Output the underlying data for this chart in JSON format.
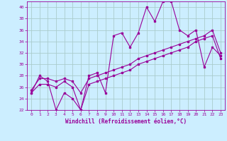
{
  "xlabel": "Windchill (Refroidissement éolien,°C)",
  "background_color": "#cceeff",
  "grid_color": "#aacccc",
  "line_color": "#990099",
  "xlim": [
    -0.5,
    23.5
  ],
  "ylim": [
    22,
    41
  ],
  "yticks": [
    22,
    24,
    26,
    28,
    30,
    32,
    34,
    36,
    38,
    40
  ],
  "xticks": [
    0,
    1,
    2,
    3,
    4,
    5,
    6,
    7,
    8,
    9,
    10,
    11,
    12,
    13,
    14,
    15,
    16,
    17,
    18,
    19,
    20,
    21,
    22,
    23
  ],
  "series1_x": [
    0,
    1,
    2,
    3,
    4,
    5,
    6,
    7,
    8,
    9,
    10,
    11,
    12,
    13,
    14,
    15,
    16,
    17,
    18,
    19,
    20,
    21,
    22,
    23
  ],
  "series1_y": [
    25,
    28,
    27,
    22,
    25,
    24,
    22,
    28,
    28.5,
    25,
    35,
    35.5,
    33,
    35.5,
    40,
    37.5,
    41,
    41,
    36,
    35,
    36,
    29.5,
    33,
    31.5
  ],
  "series2_x": [
    0,
    1,
    2,
    3,
    4,
    5,
    6,
    7,
    8,
    9,
    10,
    11,
    12,
    13,
    14,
    15,
    16,
    17,
    18,
    19,
    20,
    21,
    22,
    23
  ],
  "series2_y": [
    25.5,
    27.5,
    27.5,
    27,
    27.5,
    27,
    25,
    27.5,
    28,
    28.5,
    29,
    29.5,
    30,
    31,
    31.5,
    32,
    32.5,
    33,
    33.5,
    34,
    34.5,
    35,
    36,
    32
  ],
  "series3_x": [
    0,
    1,
    2,
    3,
    4,
    5,
    6,
    7,
    8,
    9,
    10,
    11,
    12,
    13,
    14,
    15,
    16,
    17,
    18,
    19,
    20,
    21,
    22,
    23
  ],
  "series3_y": [
    25,
    26.5,
    26.5,
    26,
    27,
    26,
    22,
    26.5,
    27,
    27.5,
    28,
    28.5,
    29,
    30,
    30.5,
    31,
    31.5,
    32,
    32.5,
    33,
    34,
    34.5,
    35,
    31
  ],
  "tick_fontsize": 4.5,
  "xlabel_fontsize": 5.5,
  "marker_size": 2.0,
  "line_width": 0.8
}
